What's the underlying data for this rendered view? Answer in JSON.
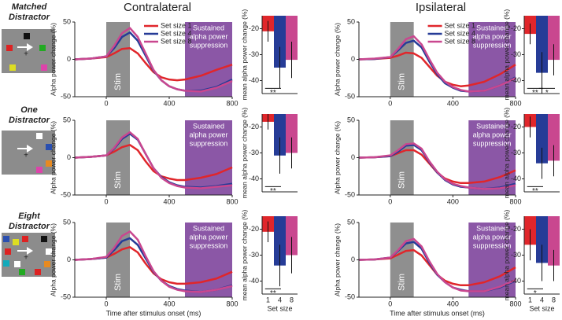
{
  "column_titles": [
    "Contralateral",
    "Ipsilateral"
  ],
  "row_labels": [
    [
      "Matched",
      "Distractor"
    ],
    [
      "One",
      "Distractor"
    ],
    [
      "Eight",
      "Distractor"
    ]
  ],
  "chart_data": [
    {
      "type": "line",
      "y_label": "Alpha power change (%)",
      "x": [
        -200,
        -100,
        0,
        50,
        100,
        150,
        200,
        250,
        300,
        350,
        400,
        450,
        500,
        600,
        700,
        800
      ],
      "xlim": [
        -200,
        800
      ],
      "xticks": [
        0,
        400,
        800
      ],
      "ylim": [
        -50,
        50
      ],
      "yticks": [
        -50,
        0,
        50
      ],
      "legend": "upper right",
      "shades": [
        {
          "x0": 0,
          "x1": 150,
          "color": "#8f8f8f",
          "label": [
            "Stim"
          ]
        },
        {
          "x0": 500,
          "x1": 800,
          "color": "#8b57a6",
          "label": [
            "Sustained",
            "alpha power",
            "suppression"
          ]
        }
      ],
      "series": [
        {
          "name": "Set size 1",
          "color": "#e0262b",
          "values": [
            0,
            1,
            3,
            8,
            14,
            15,
            8,
            -5,
            -17,
            -24,
            -27,
            -28,
            -27,
            -22,
            -14,
            -7
          ]
        },
        {
          "name": "Set size 4",
          "color": "#263c97",
          "values": [
            0,
            1,
            4,
            15,
            30,
            36,
            25,
            5,
            -15,
            -28,
            -36,
            -40,
            -42,
            -42,
            -37,
            -27
          ]
        },
        {
          "name": "Set size 8",
          "color": "#c9478f",
          "values": [
            0,
            1,
            4,
            18,
            35,
            42,
            30,
            8,
            -14,
            -28,
            -36,
            -40,
            -42,
            -43,
            -38,
            -29
          ]
        }
      ]
    },
    {
      "type": "bar",
      "y_label": "mean alpha power change (%)",
      "ylim": [
        -45,
        -15
      ],
      "yticks": [
        -20,
        -30,
        -40
      ],
      "values": [
        -21,
        -35,
        -32
      ],
      "errors": [
        4,
        8,
        7
      ],
      "colors": [
        "#e0262b",
        "#263c97",
        "#c9478f"
      ],
      "significance": [
        {
          "label": "**",
          "from": 0,
          "to": 1,
          "y": -43
        }
      ]
    },
    {
      "type": "line",
      "y_label": "Alpha power change (%)",
      "x": [
        -200,
        -100,
        0,
        50,
        100,
        150,
        200,
        250,
        300,
        350,
        400,
        450,
        500,
        600,
        700,
        800
      ],
      "xlim": [
        -200,
        800
      ],
      "xticks": [
        0,
        400,
        800
      ],
      "ylim": [
        -50,
        50
      ],
      "yticks": [
        -50,
        0,
        50
      ],
      "legend": "upper right",
      "shades": [
        {
          "x0": 0,
          "x1": 150,
          "color": "#8f8f8f",
          "label": [
            "Stim"
          ]
        },
        {
          "x0": 500,
          "x1": 800,
          "color": "#8b57a6",
          "label": [
            "Sustained",
            "alpha power",
            "suppression"
          ]
        }
      ],
      "series": [
        {
          "name": "Set size 1",
          "color": "#e0262b",
          "values": [
            0,
            0.5,
            2,
            5,
            9,
            8,
            2,
            -10,
            -22,
            -30,
            -34,
            -36,
            -35,
            -30,
            -20,
            -7
          ]
        },
        {
          "name": "Set size 4",
          "color": "#263c97",
          "values": [
            0,
            0.5,
            3,
            12,
            22,
            25,
            16,
            -3,
            -20,
            -32,
            -38,
            -42,
            -43,
            -42,
            -35,
            -24
          ]
        },
        {
          "name": "Set size 8",
          "color": "#c9478f",
          "values": [
            0,
            1,
            3,
            14,
            27,
            31,
            20,
            0,
            -18,
            -30,
            -37,
            -41,
            -43,
            -42,
            -35,
            -25
          ]
        }
      ]
    },
    {
      "type": "bar",
      "y_label": "mean alpha power change (%)",
      "ylim": [
        -45,
        -15
      ],
      "yticks": [
        -20,
        -30,
        -40
      ],
      "values": [
        -22,
        -37,
        -32
      ],
      "errors": [
        4,
        8,
        6
      ],
      "colors": [
        "#e0262b",
        "#263c97",
        "#c9478f"
      ],
      "significance": [
        {
          "label": "**",
          "from": 0,
          "to": 1,
          "y": -43
        },
        {
          "label": "*",
          "from": 1,
          "to": 2,
          "y": -43
        }
      ]
    },
    {
      "type": "line",
      "y_label": "Alpha power change (%)",
      "x": [
        -200,
        -100,
        0,
        50,
        100,
        150,
        200,
        250,
        300,
        350,
        400,
        450,
        500,
        600,
        700,
        800
      ],
      "xlim": [
        -200,
        800
      ],
      "xticks": [
        0,
        400,
        800
      ],
      "ylim": [
        -50,
        50
      ],
      "yticks": [
        -50,
        0,
        50
      ],
      "shades": [
        {
          "x0": 0,
          "x1": 150,
          "color": "#8f8f8f",
          "label": [
            "Stim"
          ]
        },
        {
          "x0": 500,
          "x1": 800,
          "color": "#8b57a6",
          "label": [
            "Sustained",
            "alpha power",
            "suppression"
          ]
        }
      ],
      "series": [
        {
          "color": "#e0262b",
          "values": [
            0,
            1,
            3,
            8,
            14,
            17,
            10,
            -5,
            -18,
            -25,
            -28,
            -30,
            -30,
            -27,
            -22,
            -13
          ]
        },
        {
          "color": "#263c97",
          "values": [
            0,
            1,
            3,
            12,
            25,
            32,
            24,
            5,
            -14,
            -26,
            -33,
            -37,
            -39,
            -40,
            -38,
            -35
          ]
        },
        {
          "color": "#c9478f",
          "values": [
            0,
            1,
            3,
            13,
            27,
            34,
            25,
            5,
            -14,
            -27,
            -34,
            -38,
            -40,
            -41,
            -39,
            -37
          ]
        }
      ]
    },
    {
      "type": "bar",
      "y_label": "mean alpha power change (%)",
      "ylim": [
        -45,
        -15
      ],
      "yticks": [
        -20,
        -30,
        -40
      ],
      "values": [
        -18,
        -31,
        -30
      ],
      "errors": [
        3,
        7,
        6
      ],
      "colors": [
        "#e0262b",
        "#263c97",
        "#c9478f"
      ],
      "significance": [
        {
          "label": "**",
          "from": 0,
          "to": 1,
          "y": -43
        }
      ]
    },
    {
      "type": "line",
      "y_label": "Alpha power change (%)",
      "x": [
        -200,
        -100,
        0,
        50,
        100,
        150,
        200,
        250,
        300,
        350,
        400,
        450,
        500,
        600,
        700,
        800
      ],
      "xlim": [
        -200,
        800
      ],
      "xticks": [
        0,
        400,
        800
      ],
      "ylim": [
        -50,
        50
      ],
      "yticks": [
        -50,
        0,
        50
      ],
      "shades": [
        {
          "x0": 0,
          "x1": 150,
          "color": "#8f8f8f",
          "label": [
            "Stim"
          ]
        },
        {
          "x0": 500,
          "x1": 800,
          "color": "#8b57a6",
          "label": [
            "Sustained",
            "alpha power",
            "suppression"
          ]
        }
      ],
      "series": [
        {
          "color": "#e0262b",
          "values": [
            0,
            0.5,
            2,
            6,
            10,
            10,
            4,
            -8,
            -20,
            -28,
            -32,
            -34,
            -34,
            -32,
            -26,
            -17
          ]
        },
        {
          "color": "#263c97",
          "values": [
            0,
            0.5,
            2,
            8,
            16,
            17,
            10,
            -6,
            -20,
            -30,
            -36,
            -39,
            -40,
            -42,
            -40,
            -35
          ]
        },
        {
          "color": "#c9478f",
          "values": [
            0,
            0.5,
            3,
            10,
            18,
            19,
            12,
            -5,
            -19,
            -29,
            -35,
            -38,
            -40,
            -42,
            -41,
            -37
          ]
        }
      ]
    },
    {
      "type": "bar",
      "y_label": "mean alpha power change (%)",
      "ylim": [
        -45,
        -15
      ],
      "yticks": [
        -20,
        -30,
        -40
      ],
      "values": [
        -20,
        -34,
        -33
      ],
      "errors": [
        4,
        6,
        6
      ],
      "colors": [
        "#e0262b",
        "#263c97",
        "#c9478f"
      ],
      "significance": [
        {
          "label": "**",
          "from": 0,
          "to": 1,
          "y": -43
        }
      ]
    },
    {
      "type": "line",
      "y_label": "Alpha power change (%)",
      "x_label": "Time after stimulus onset (ms)",
      "x": [
        -200,
        -100,
        0,
        50,
        100,
        150,
        200,
        250,
        300,
        350,
        400,
        450,
        500,
        600,
        700,
        800
      ],
      "xlim": [
        -200,
        800
      ],
      "xticks": [
        0,
        400,
        800
      ],
      "ylim": [
        -50,
        50
      ],
      "yticks": [
        -50,
        0,
        50
      ],
      "shades": [
        {
          "x0": 0,
          "x1": 150,
          "color": "#8f8f8f",
          "label": [
            "Stim"
          ]
        },
        {
          "x0": 500,
          "x1": 800,
          "color": "#8b57a6",
          "label": [
            "Sustained",
            "alpha power",
            "suppression"
          ]
        }
      ],
      "series": [
        {
          "color": "#e0262b",
          "values": [
            0,
            1,
            3,
            8,
            14,
            17,
            10,
            -5,
            -18,
            -26,
            -30,
            -32,
            -32,
            -30,
            -25,
            -16
          ]
        },
        {
          "color": "#263c97",
          "values": [
            0,
            1,
            3,
            13,
            25,
            29,
            20,
            2,
            -16,
            -28,
            -35,
            -39,
            -41,
            -43,
            -40,
            -34
          ]
        },
        {
          "color": "#c9478f",
          "values": [
            0,
            1,
            4,
            16,
            32,
            38,
            27,
            5,
            -15,
            -28,
            -36,
            -40,
            -42,
            -43,
            -40,
            -35
          ]
        }
      ]
    },
    {
      "type": "bar",
      "y_label": "mean alpha power change (%)",
      "x_label": "Set size",
      "categories": [
        1,
        4,
        8
      ],
      "ylim": [
        -45,
        -15
      ],
      "yticks": [
        -20,
        -30,
        -40
      ],
      "values": [
        -21,
        -34,
        -30
      ],
      "errors": [
        4,
        8,
        7
      ],
      "colors": [
        "#e0262b",
        "#263c97",
        "#c9478f"
      ],
      "significance": [
        {
          "label": "**",
          "from": 0,
          "to": 1,
          "y": -43
        }
      ]
    },
    {
      "type": "line",
      "y_label": "Alpha power change (%)",
      "x_label": "Time after stimulus onset (ms)",
      "x": [
        -200,
        -100,
        0,
        50,
        100,
        150,
        200,
        250,
        300,
        350,
        400,
        450,
        500,
        600,
        700,
        800
      ],
      "xlim": [
        -200,
        800
      ],
      "xticks": [
        0,
        400,
        800
      ],
      "ylim": [
        -50,
        50
      ],
      "yticks": [
        -50,
        0,
        50
      ],
      "shades": [
        {
          "x0": 0,
          "x1": 150,
          "color": "#8f8f8f",
          "label": [
            "Stim"
          ]
        },
        {
          "x0": 500,
          "x1": 800,
          "color": "#8b57a6",
          "label": [
            "Sustained",
            "alpha power",
            "suppression"
          ]
        }
      ],
      "series": [
        {
          "color": "#e0262b",
          "values": [
            0,
            0.5,
            2,
            7,
            12,
            13,
            6,
            -7,
            -20,
            -28,
            -32,
            -34,
            -34,
            -30,
            -22,
            -10
          ]
        },
        {
          "color": "#263c97",
          "values": [
            0,
            0.5,
            3,
            12,
            22,
            24,
            15,
            -4,
            -20,
            -30,
            -37,
            -40,
            -42,
            -42,
            -37,
            -28
          ]
        },
        {
          "color": "#c9478f",
          "values": [
            0,
            0.5,
            3,
            13,
            25,
            28,
            18,
            -2,
            -19,
            -30,
            -37,
            -41,
            -42,
            -42,
            -36,
            -27
          ]
        }
      ]
    },
    {
      "type": "bar",
      "y_label": "mean alpha power change (%)",
      "x_label": "Set size",
      "categories": [
        1,
        4,
        8
      ],
      "ylim": [
        -45,
        -15
      ],
      "yticks": [
        -20,
        -30,
        -40
      ],
      "values": [
        -26,
        -33,
        -34
      ],
      "errors": [
        6,
        7,
        6
      ],
      "colors": [
        "#e0262b",
        "#263c97",
        "#c9478f"
      ],
      "significance": [
        {
          "label": "*",
          "from": 0,
          "to": 1,
          "y": -43
        }
      ]
    }
  ]
}
